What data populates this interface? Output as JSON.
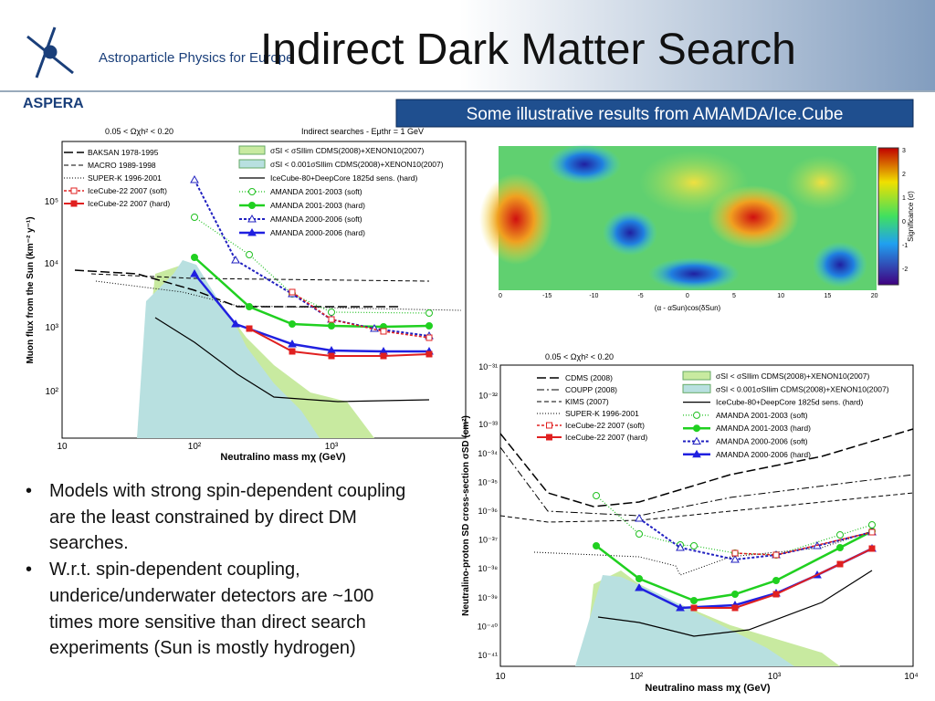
{
  "header": {
    "logo": "ASPERA",
    "organization": "Astroparticle Physics for Europe",
    "title": "Indirect Dark Matter Search"
  },
  "subtitle": "Some illustrative results from AMAMDA/Ice.Cube",
  "bullets": [
    "Models with strong spin-dependent coupling are the least constrained by direct DM searches.",
    "W.r.t. spin-dependent coupling, underice/underwater detectors are ~100 times more sensitive than direct search experiments (Sun is mostly hydrogen)"
  ],
  "flux_plot": {
    "cut": "0.05 < Ωχh² < 0.20",
    "note": "Indirect searches - Eμthr = 1 GeV",
    "y_label": "Muon flux from the Sun (km⁻² y⁻¹)",
    "x_label": "Neutralino mass mχ (GeV)",
    "x_ticks": [
      "10",
      "10²",
      "10³"
    ],
    "y_ticks": [
      "10⁵",
      "10⁴",
      "10³",
      "10²"
    ],
    "legend_left": [
      "BAKSAN 1978-1995",
      "MACRO 1989-1998",
      "SUPER-K 1996-2001",
      "IceCube-22 2007 (soft)",
      "IceCube-22 2007 (hard)"
    ],
    "legend_right": [
      "σSI < σSIlim CDMS(2008)+XENON10(2007)",
      "σSI < 0.001σSIlim CDMS(2008)+XENON10(2007)",
      "IceCube-80+DeepCore 1825d sens. (hard)",
      "AMANDA 2001-2003 (soft)",
      "AMANDA 2001-2003 (hard)",
      "AMANDA 2000-2006 (soft)",
      "AMANDA 2000-2006 (hard)"
    ]
  },
  "cross_section_plot": {
    "cut": "0.05 < Ωχh² < 0.20",
    "y_label": "Neutralino-proton SD cross-section σSD (cm²)",
    "x_label": "Neutralino mass mχ (GeV)",
    "x_ticks": [
      "10",
      "10²",
      "10³",
      "10⁴"
    ],
    "y_ticks": [
      "10⁻³¹",
      "10⁻³²",
      "10⁻³³",
      "10⁻³⁴",
      "10⁻³⁵",
      "10⁻³⁶",
      "10⁻³⁷",
      "10⁻³⁸",
      "10⁻³⁹",
      "10⁻⁴⁰",
      "10⁻⁴¹"
    ],
    "legend_left": [
      "CDMS (2008)",
      "COUPP (2008)",
      "KIMS (2007)",
      "SUPER-K 1996-2001",
      "IceCube-22 2007 (soft)",
      "IceCube-22 2007 (hard)"
    ],
    "legend_right": [
      "σSI < σSIlim CDMS(2008)+XENON10(2007)",
      "σSI < 0.001σSIlim CDMS(2008)+XENON10(2007)",
      "IceCube-80+DeepCore 1825d sens. (hard)",
      "AMANDA 2001-2003 (soft)",
      "AMANDA 2001-2003 (hard)",
      "AMANDA 2000-2006 (soft)",
      "AMANDA 2000-2006 (hard)"
    ]
  },
  "sky_map": {
    "x_label": "(α - αSun)cos(δSun)",
    "x_ticks": [
      "0",
      "-15",
      "-10",
      "-5",
      "0",
      "5",
      "10",
      "15",
      "20"
    ],
    "colorbar_label": "Significance (σ)",
    "colorbar_ticks": [
      "3",
      "2",
      "1",
      "0",
      "-1",
      "-2"
    ]
  }
}
